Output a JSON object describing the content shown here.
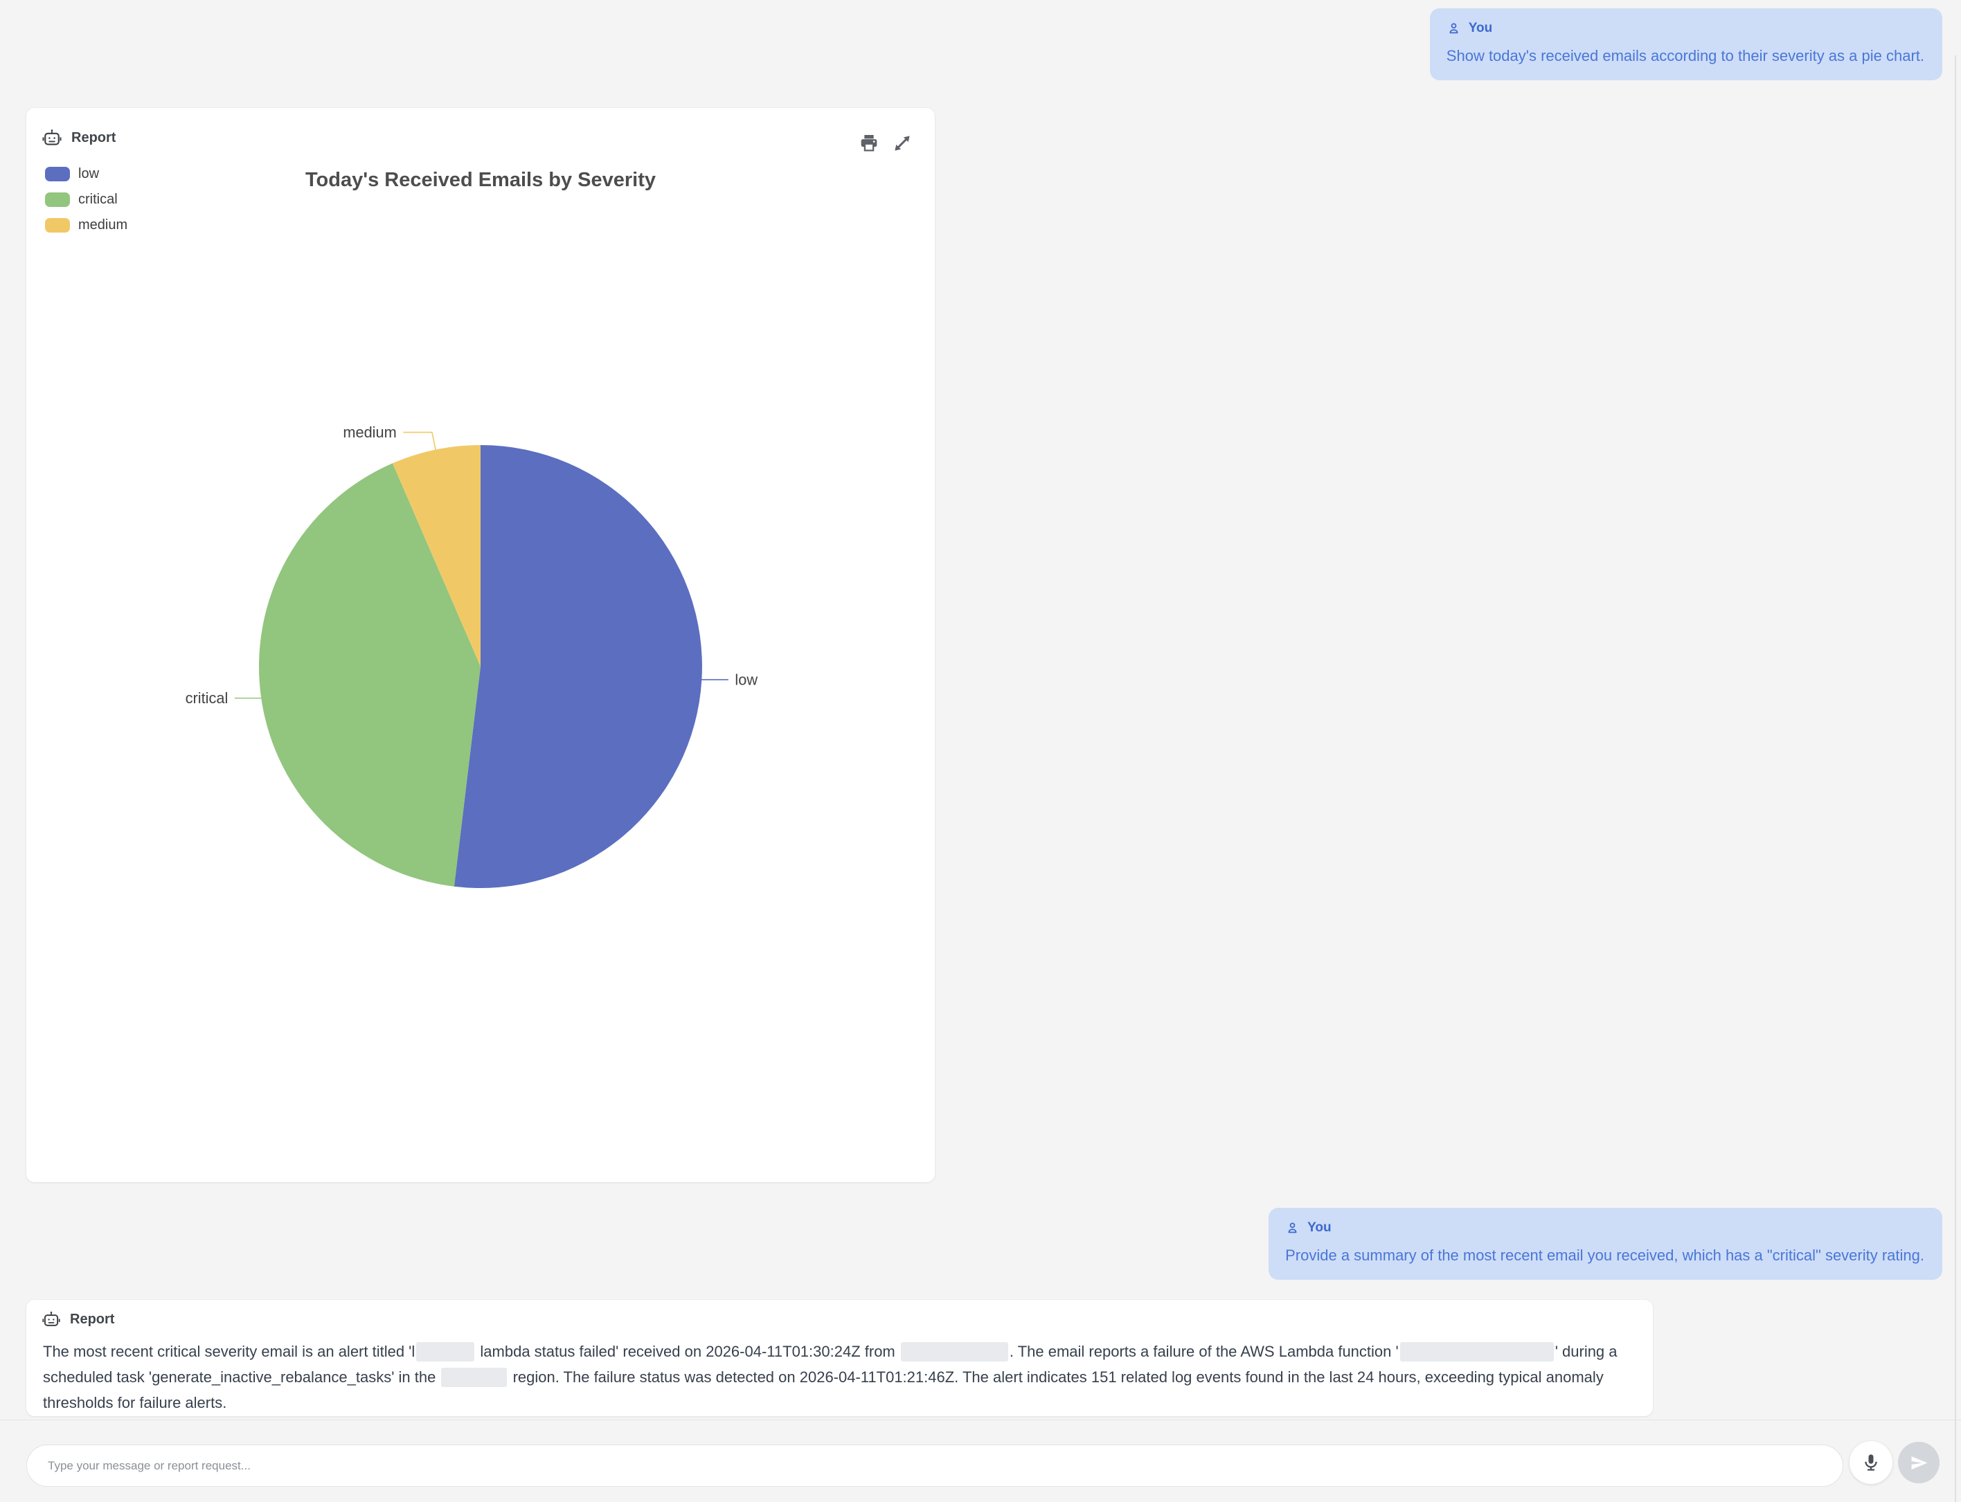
{
  "colors": {
    "page_bg": "#f4f4f4",
    "bubble_bg": "#cdddf7",
    "bubble_text": "#4a76d8",
    "summary_text": "#37404d"
  },
  "chat": {
    "messages": [
      {
        "author": "You",
        "text": "Show today's received emails according to their severity as a pie chart."
      },
      {
        "author": "You",
        "text": "Provide a summary of the most recent email you received, which has a \"critical\" severity rating."
      }
    ]
  },
  "report_chart": {
    "label": "Report"
  },
  "chart_data": {
    "type": "pie",
    "title": "Today's Received Emails by Severity",
    "labels": [
      "low",
      "critical",
      "medium"
    ],
    "values": [
      51.9,
      41.6,
      6.5
    ],
    "values_unit": "percent, estimated from slice angles (no numeric labels shown in chart)",
    "colors": {
      "low": "#5c6ec0",
      "critical": "#92c57e",
      "medium": "#f0c966"
    },
    "legend": {
      "position": "top-left",
      "items": [
        "low",
        "critical",
        "medium"
      ]
    },
    "slice_labels": "outside with leader lines",
    "start_angle": "12 o'clock, clockwise"
  },
  "report_summary": {
    "label": "Report",
    "segments": [
      {
        "t": "The most recent critical severity email is an alert titled 'l"
      },
      {
        "redact": 84
      },
      {
        "t": " lambda status failed' received on 2026-04-11T01:30:24Z from "
      },
      {
        "redact": 155
      },
      {
        "t": ". The email reports a failure of the AWS Lambda function '"
      },
      {
        "redact": 222
      },
      {
        "t": "' during a scheduled task 'generate_inactive_rebalance_tasks' in the "
      },
      {
        "redact": 95
      },
      {
        "t": " region. The failure status was detected on 2026-04-11T01:21:46Z. The alert indicates 151 related log events found in the last 24 hours, exceeding typical anomaly thresholds for failure alerts."
      }
    ]
  },
  "composer": {
    "placeholder": "Type your message or report request..."
  }
}
